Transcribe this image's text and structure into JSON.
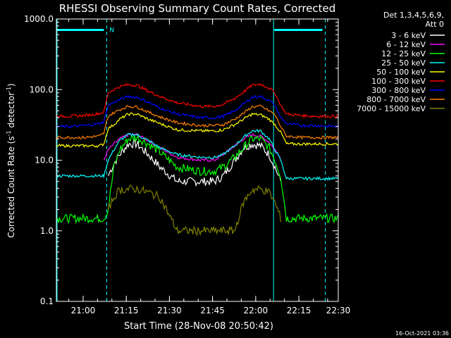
{
  "chart_data": {
    "type": "line",
    "title": "RHESSI Observing Summary Count Rates, Corrected",
    "xlabel": "Start Time (28-Nov-08 20:50:42)",
    "ylabel_main": "Corrected Count Rate (s",
    "ylabel_sup1": "-1",
    "ylabel_mid": " detector",
    "ylabel_sup2": "-1",
    "ylabel_end": ")",
    "y_scale": "log",
    "ylim": [
      0.1,
      1000
    ],
    "xlim_minutes": [
      0,
      98
    ],
    "x_ticks": [
      {
        "label": "21:00",
        "minute": 9.3
      },
      {
        "label": "21:15",
        "minute": 24.3
      },
      {
        "label": "21:30",
        "minute": 39.3
      },
      {
        "label": "21:45",
        "minute": 54.3
      },
      {
        "label": "22:00",
        "minute": 69.3
      },
      {
        "label": "22:15",
        "minute": 84.3
      },
      {
        "label": "22:30",
        "minute": 99.3
      }
    ],
    "y_ticks": [
      "1000.0",
      "100.0",
      "10.0",
      "1.0",
      "0.1"
    ],
    "legend_header": [
      "Det 1,3,4,5,6,9,",
      "Att 0"
    ],
    "legend_position": "right",
    "annotations": {
      "night_label": "N",
      "night_intervals_minutes": [
        [
          0,
          17.5
        ],
        [
          75.5,
          93.5
        ]
      ],
      "night_bar_level": 700,
      "vertical_markers_minutes": [
        17.5,
        75.5,
        93.5
      ]
    },
    "x_samples": [
      0,
      5,
      10,
      15,
      16.5,
      18,
      20,
      22,
      25,
      28,
      32,
      36,
      42,
      50,
      55,
      58,
      62,
      65,
      68,
      71,
      74,
      76,
      78,
      80,
      85,
      90,
      98
    ],
    "series": [
      {
        "name": "3 - 6 keV",
        "color": "#ffffff",
        "values": [
          null,
          null,
          null,
          null,
          null,
          6,
          9,
          12,
          17,
          17,
          12,
          8,
          5,
          5,
          5,
          6,
          10,
          15,
          17,
          16,
          12,
          8,
          5,
          null,
          null,
          null,
          null
        ]
      },
      {
        "name": "6 - 12 keV",
        "color": "#ff00ff",
        "values": [
          null,
          null,
          null,
          null,
          10,
          14,
          17,
          20,
          23,
          23,
          19,
          15,
          11,
          10,
          10,
          12,
          16,
          20,
          23,
          22,
          18,
          14,
          11,
          null,
          null,
          null,
          null
        ]
      },
      {
        "name": "12 - 25 keV",
        "color": "#00ff00",
        "values": [
          1.5,
          1.5,
          1.5,
          1.5,
          1.5,
          2,
          8,
          14,
          20,
          21,
          17,
          13,
          8,
          7,
          7,
          8,
          11,
          15,
          20,
          20,
          15,
          10,
          6,
          1.5,
          1.5,
          1.5,
          1.5
        ]
      },
      {
        "name": "25 - 50 keV",
        "color": "#00ffff",
        "values": [
          6,
          6,
          6,
          6,
          6,
          10,
          14,
          19,
          23,
          23,
          19,
          15,
          12,
          11,
          11,
          12,
          16,
          21,
          26,
          26,
          20,
          14,
          10,
          5.5,
          5.5,
          5.5,
          5.5
        ]
      },
      {
        "name": "50 - 100 keV",
        "color": "#ffff00",
        "values": [
          16,
          16,
          16,
          16,
          17,
          28,
          32,
          38,
          45,
          45,
          38,
          33,
          27,
          26,
          26,
          27,
          32,
          38,
          45,
          44,
          38,
          32,
          25,
          17,
          17,
          17,
          17
        ]
      },
      {
        "name": "100 - 300 keV",
        "color": "#ff0000",
        "values": [
          42,
          42,
          43,
          46,
          48,
          90,
          100,
          110,
          118,
          115,
          95,
          80,
          65,
          58,
          58,
          62,
          75,
          92,
          115,
          120,
          105,
          90,
          60,
          45,
          43,
          42,
          42
        ]
      },
      {
        "name": "300 - 800 keV",
        "color": "#0000ff",
        "values": [
          30,
          30,
          31,
          33,
          35,
          60,
          66,
          72,
          80,
          78,
          66,
          55,
          45,
          40,
          40,
          42,
          50,
          62,
          78,
          80,
          70,
          60,
          40,
          33,
          31,
          31,
          30
        ]
      },
      {
        "name": "800 - 7000 keV",
        "color": "#ff8000",
        "values": [
          21,
          21,
          21,
          22,
          24,
          42,
          47,
          52,
          58,
          57,
          48,
          41,
          34,
          31,
          31,
          32,
          38,
          46,
          57,
          58,
          50,
          44,
          30,
          22,
          21,
          21,
          21
        ]
      },
      {
        "name": "7000 - 15000 keV",
        "color": "#808000",
        "values": [
          null,
          null,
          null,
          null,
          null,
          2,
          3,
          3.8,
          3.9,
          3.9,
          3.5,
          3,
          1,
          1,
          1,
          1,
          1,
          2.5,
          3.8,
          3.9,
          3.5,
          2.5,
          1.5,
          null,
          null,
          null,
          null
        ]
      }
    ]
  },
  "footer": {
    "date": "16-Oct-2021 03:36"
  }
}
